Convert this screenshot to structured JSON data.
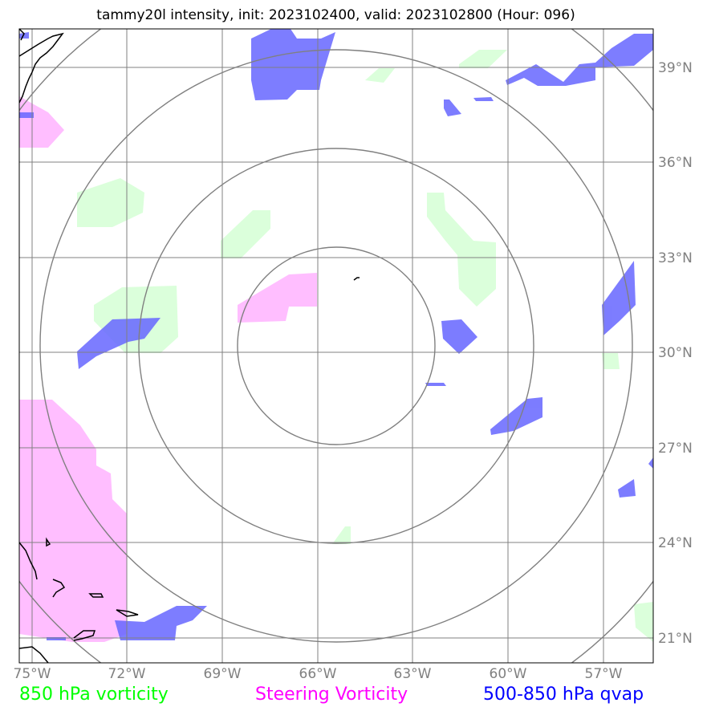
{
  "title": "tammy20l intensity, init: 2023102400, valid: 2023102800 (Hour: 096)",
  "storm": "tammy20l",
  "product": "intensity",
  "init": "2023102400",
  "valid": "2023102800",
  "forecast_hour": "096",
  "axes": {
    "lon_ticks": [
      "75°W",
      "72°W",
      "69°W",
      "66°W",
      "63°W",
      "60°W",
      "57°W"
    ],
    "lat_ticks": [
      "39°N",
      "36°N",
      "33°N",
      "30°N",
      "27°N",
      "24°N",
      "21°N"
    ]
  },
  "map_extent": {
    "lon_min": -75.4,
    "lon_max": -55.4,
    "lat_min": 20.2,
    "lat_max": 40.2
  },
  "gridlines": true,
  "range_rings": {
    "count": 4,
    "center": {
      "lon": -65.5,
      "lat": 30.2
    }
  },
  "legend": {
    "green_label": "850 hPa vorticity",
    "magenta_label": "Steering Vorticity",
    "blue_label": "500-850 hPa qvap"
  },
  "colors": {
    "vorticity_850": "#ccffcc",
    "steering_vorticity": "#ffb3ff",
    "qvap": "#6666ff",
    "grid": "#808080",
    "coast": "#000000",
    "legend_green": "#00ff00",
    "legend_magenta": "#ff00ff",
    "legend_blue": "#0000ff"
  }
}
